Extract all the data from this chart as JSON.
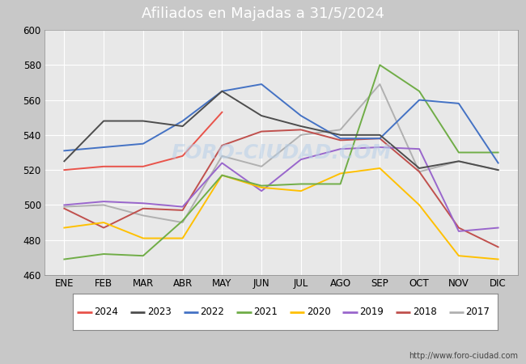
{
  "title": "Afiliados en Majadas a 31/5/2024",
  "title_bg": "#5b8fd4",
  "months": [
    "ENE",
    "FEB",
    "MAR",
    "ABR",
    "MAY",
    "JUN",
    "JUL",
    "AGO",
    "SEP",
    "OCT",
    "NOV",
    "DIC"
  ],
  "ylim": [
    460,
    600
  ],
  "yticks": [
    460,
    480,
    500,
    520,
    540,
    560,
    580,
    600
  ],
  "series": {
    "2024": {
      "color": "#e8534a",
      "values": [
        520,
        522,
        522,
        528,
        553,
        null,
        null,
        null,
        null,
        null,
        null,
        null
      ]
    },
    "2023": {
      "color": "#4d4d4d",
      "values": [
        525,
        548,
        548,
        545,
        565,
        551,
        545,
        540,
        540,
        521,
        525,
        520
      ]
    },
    "2022": {
      "color": "#4472c4",
      "values": [
        531,
        533,
        535,
        548,
        565,
        569,
        551,
        538,
        538,
        560,
        558,
        524
      ]
    },
    "2021": {
      "color": "#70ad47",
      "values": [
        469,
        472,
        471,
        491,
        517,
        511,
        512,
        512,
        580,
        565,
        530,
        530
      ]
    },
    "2020": {
      "color": "#ffc000",
      "values": [
        487,
        490,
        481,
        481,
        517,
        510,
        508,
        518,
        521,
        500,
        471,
        469
      ]
    },
    "2019": {
      "color": "#9966cc",
      "values": [
        500,
        502,
        501,
        499,
        524,
        508,
        526,
        532,
        533,
        532,
        485,
        487
      ]
    },
    "2018": {
      "color": "#c0504d",
      "values": [
        498,
        487,
        498,
        497,
        534,
        542,
        543,
        537,
        538,
        519,
        487,
        476
      ]
    },
    "2017": {
      "color": "#b0b0b0",
      "values": [
        499,
        500,
        494,
        490,
        528,
        522,
        540,
        543,
        569,
        519,
        525,
        520
      ]
    }
  },
  "watermark": "FORO-CIUDAD.COM",
  "url": "http://www.foro-ciudad.com",
  "bg_color": "#c8c8c8",
  "plot_bg": "#e8e8e8",
  "legend_bg": "#ffffff"
}
